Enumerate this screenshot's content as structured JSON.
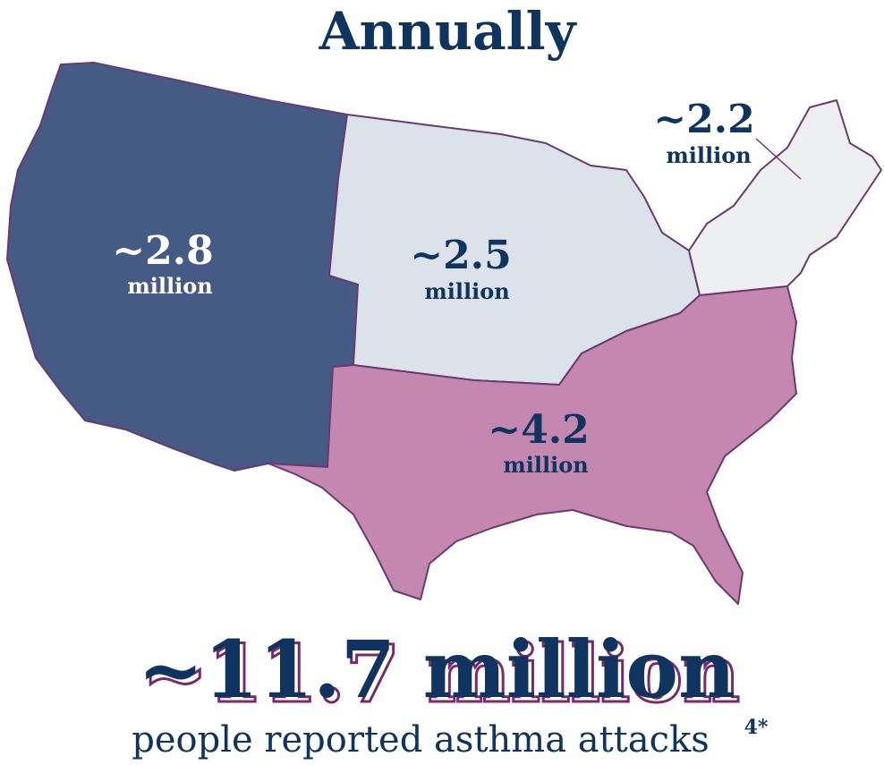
{
  "title": "Annually",
  "regions": [
    {
      "value": "~2.8",
      "unit": "million"
    },
    {
      "value": "~2.5",
      "unit": "million"
    },
    {
      "value": "~2.2",
      "unit": "million"
    },
    {
      "value": "~4.2",
      "unit": "million"
    }
  ],
  "total": "~11.7 million",
  "caption": "people reported asthma attacks",
  "footnote": "4*"
}
